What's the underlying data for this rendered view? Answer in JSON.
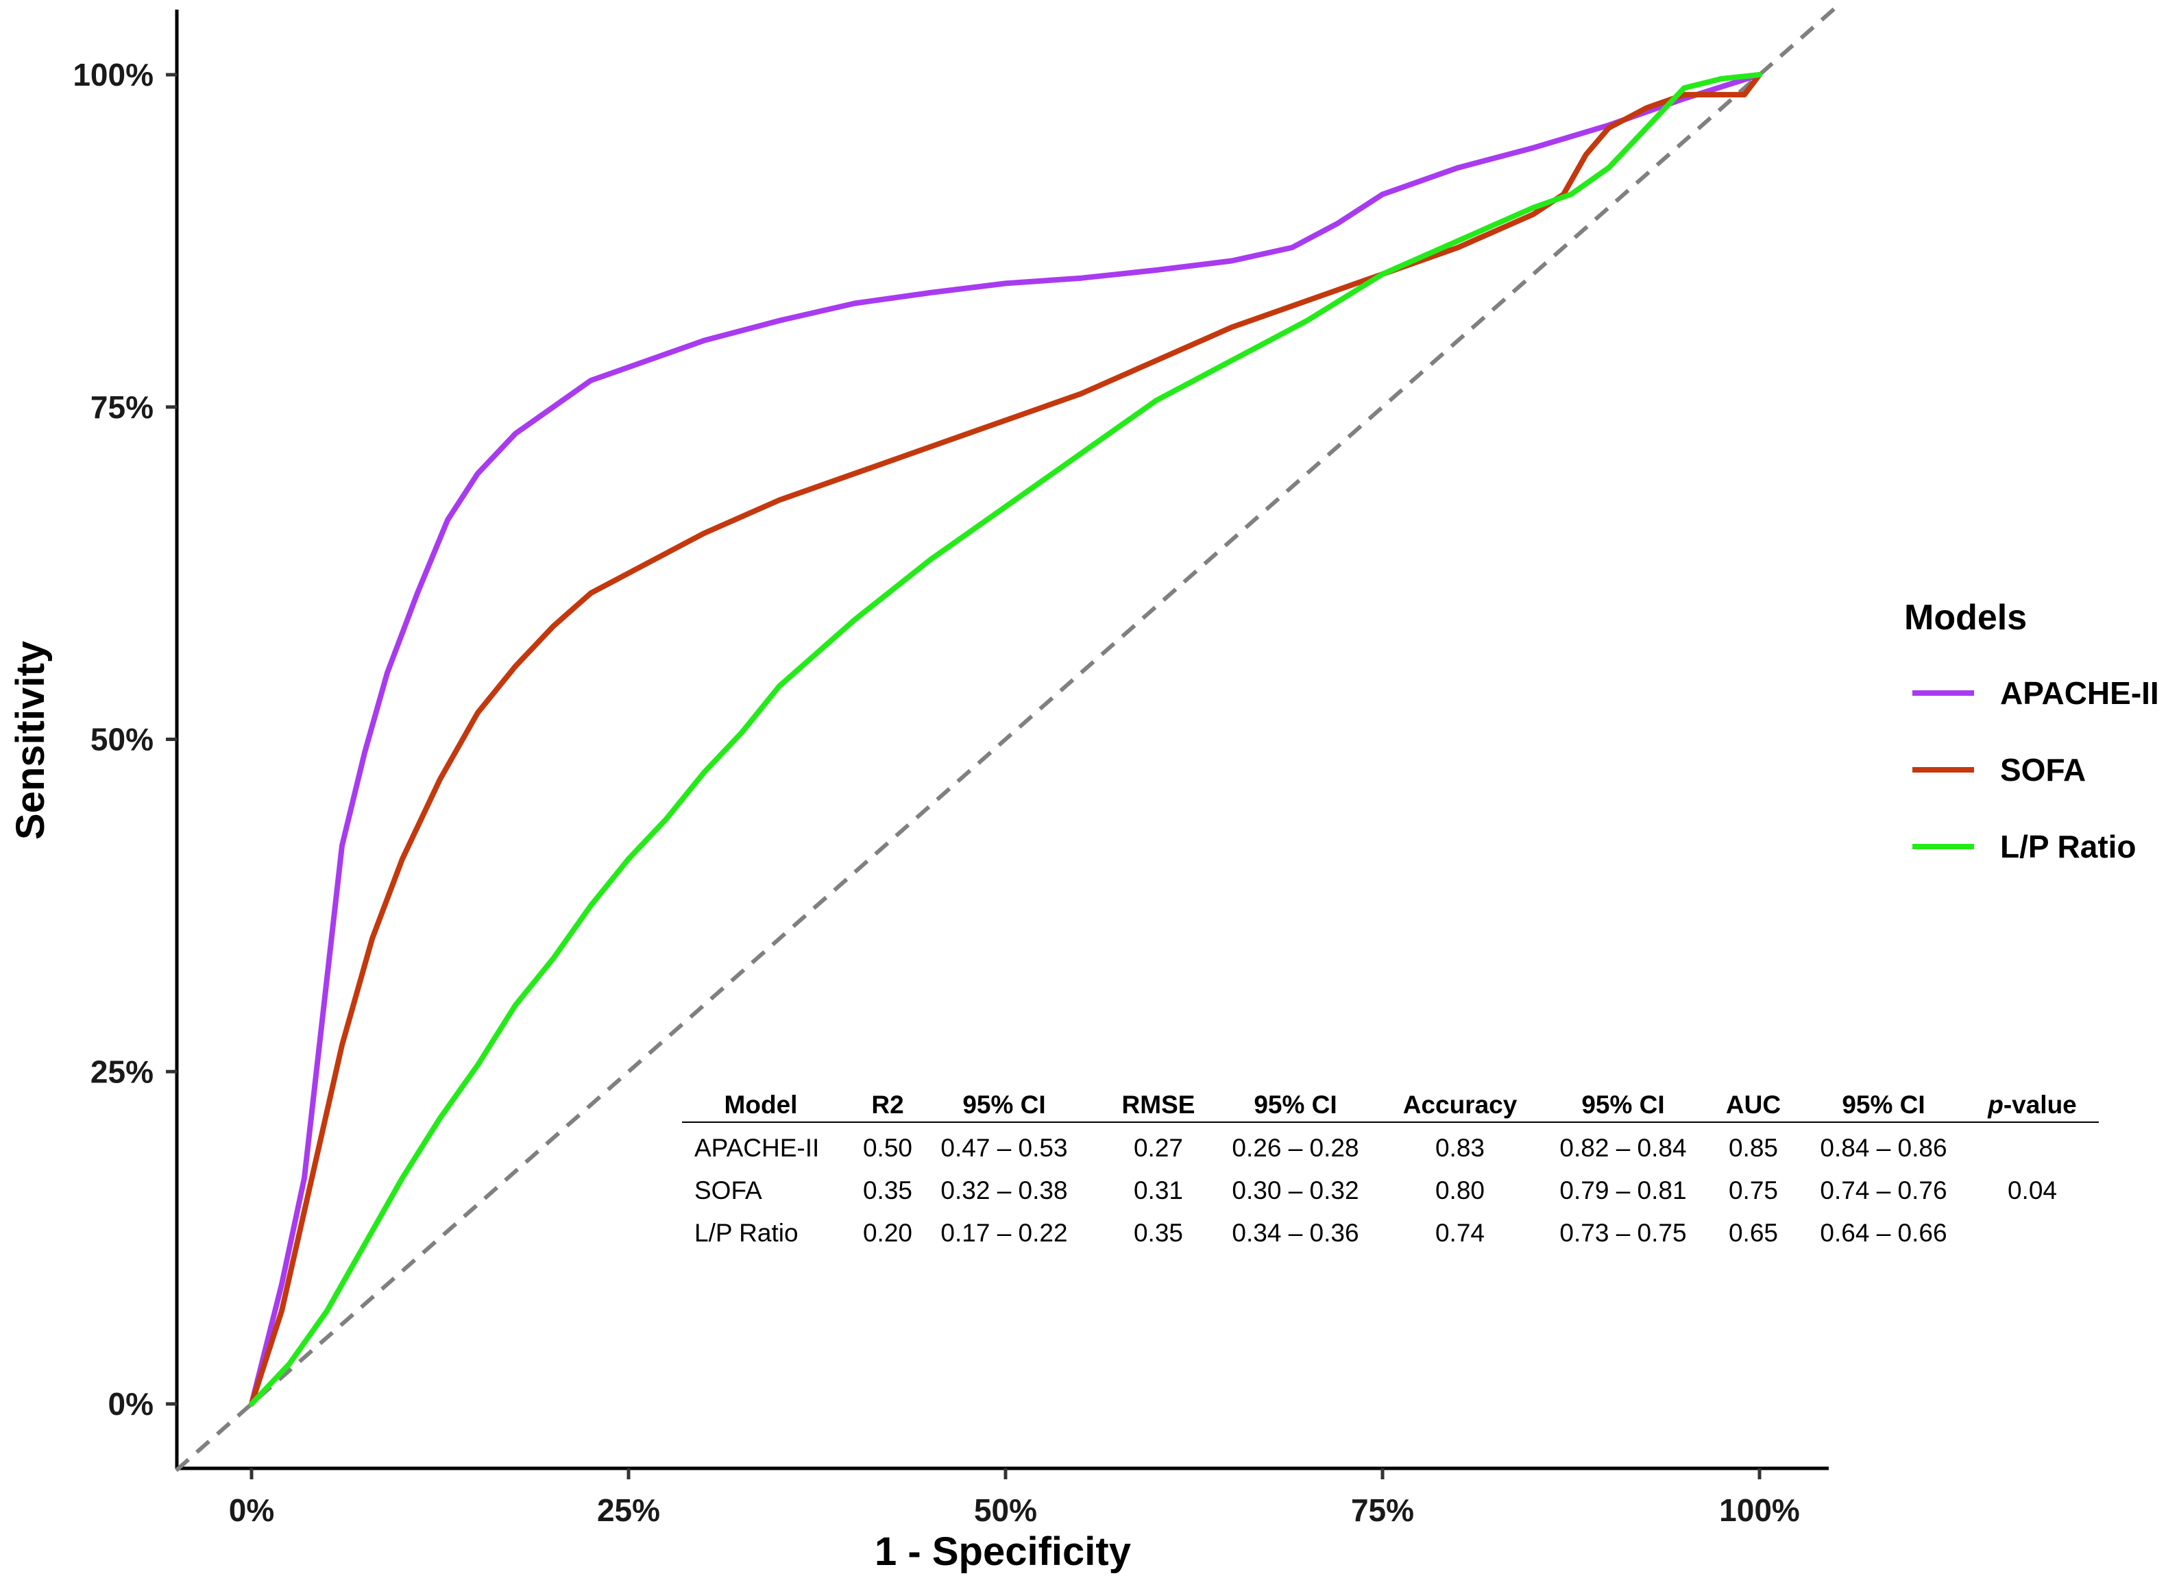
{
  "chart_data": {
    "type": "line",
    "xlabel": "1 - Specificity",
    "ylabel": "Sensitivity",
    "xlim": [
      0,
      1
    ],
    "ylim": [
      0,
      1
    ],
    "x_ticks": [
      {
        "value": 0,
        "label": "0%"
      },
      {
        "value": 0.25,
        "label": "25%"
      },
      {
        "value": 0.5,
        "label": "50%"
      },
      {
        "value": 0.75,
        "label": "75%"
      },
      {
        "value": 1,
        "label": "100%"
      }
    ],
    "y_ticks": [
      {
        "value": 0,
        "label": "0%"
      },
      {
        "value": 0.25,
        "label": "25%"
      },
      {
        "value": 0.5,
        "label": "50%"
      },
      {
        "value": 0.75,
        "label": "75%"
      },
      {
        "value": 1,
        "label": "100%"
      }
    ],
    "reference_line": {
      "style": "dashed",
      "color": "#808080",
      "from": [
        -0.05,
        -0.05
      ],
      "to": [
        1.05,
        1.05
      ]
    },
    "legend": {
      "title": "Models",
      "position": "right"
    },
    "series": [
      {
        "name": "APACHE-II",
        "color": "#A83BF0",
        "points": [
          [
            0,
            0
          ],
          [
            0.02,
            0.09
          ],
          [
            0.035,
            0.17
          ],
          [
            0.05,
            0.32
          ],
          [
            0.06,
            0.42
          ],
          [
            0.075,
            0.49
          ],
          [
            0.09,
            0.55
          ],
          [
            0.11,
            0.61
          ],
          [
            0.13,
            0.665
          ],
          [
            0.15,
            0.7
          ],
          [
            0.175,
            0.73
          ],
          [
            0.2,
            0.75
          ],
          [
            0.225,
            0.77
          ],
          [
            0.25,
            0.78
          ],
          [
            0.3,
            0.8
          ],
          [
            0.35,
            0.815
          ],
          [
            0.4,
            0.828
          ],
          [
            0.45,
            0.836
          ],
          [
            0.5,
            0.843
          ],
          [
            0.55,
            0.847
          ],
          [
            0.6,
            0.853
          ],
          [
            0.65,
            0.86
          ],
          [
            0.69,
            0.87
          ],
          [
            0.72,
            0.888
          ],
          [
            0.75,
            0.91
          ],
          [
            0.8,
            0.93
          ],
          [
            0.85,
            0.945
          ],
          [
            0.9,
            0.962
          ],
          [
            0.95,
            0.982
          ],
          [
            1.0,
            1.0
          ]
        ]
      },
      {
        "name": "SOFA",
        "color": "#C4380E",
        "points": [
          [
            0,
            0
          ],
          [
            0.02,
            0.07
          ],
          [
            0.04,
            0.17
          ],
          [
            0.06,
            0.27
          ],
          [
            0.08,
            0.35
          ],
          [
            0.1,
            0.41
          ],
          [
            0.125,
            0.47
          ],
          [
            0.15,
            0.52
          ],
          [
            0.175,
            0.555
          ],
          [
            0.2,
            0.585
          ],
          [
            0.225,
            0.61
          ],
          [
            0.25,
            0.625
          ],
          [
            0.3,
            0.655
          ],
          [
            0.35,
            0.68
          ],
          [
            0.4,
            0.7
          ],
          [
            0.45,
            0.72
          ],
          [
            0.5,
            0.74
          ],
          [
            0.55,
            0.76
          ],
          [
            0.6,
            0.785
          ],
          [
            0.65,
            0.81
          ],
          [
            0.7,
            0.83
          ],
          [
            0.75,
            0.85
          ],
          [
            0.8,
            0.87
          ],
          [
            0.85,
            0.895
          ],
          [
            0.87,
            0.91
          ],
          [
            0.885,
            0.94
          ],
          [
            0.9,
            0.96
          ],
          [
            0.925,
            0.975
          ],
          [
            0.95,
            0.985
          ],
          [
            0.99,
            0.985
          ],
          [
            1.0,
            1.0
          ]
        ]
      },
      {
        "name": "L/P Ratio",
        "color": "#25EA1A",
        "points": [
          [
            0,
            0
          ],
          [
            0.025,
            0.03
          ],
          [
            0.05,
            0.07
          ],
          [
            0.075,
            0.12
          ],
          [
            0.1,
            0.17
          ],
          [
            0.125,
            0.215
          ],
          [
            0.15,
            0.255
          ],
          [
            0.175,
            0.3
          ],
          [
            0.2,
            0.335
          ],
          [
            0.225,
            0.375
          ],
          [
            0.25,
            0.41
          ],
          [
            0.275,
            0.44
          ],
          [
            0.3,
            0.475
          ],
          [
            0.325,
            0.505
          ],
          [
            0.35,
            0.54
          ],
          [
            0.4,
            0.59
          ],
          [
            0.45,
            0.635
          ],
          [
            0.5,
            0.675
          ],
          [
            0.55,
            0.715
          ],
          [
            0.6,
            0.755
          ],
          [
            0.65,
            0.785
          ],
          [
            0.7,
            0.815
          ],
          [
            0.75,
            0.85
          ],
          [
            0.8,
            0.875
          ],
          [
            0.85,
            0.9
          ],
          [
            0.875,
            0.91
          ],
          [
            0.9,
            0.93
          ],
          [
            0.925,
            0.96
          ],
          [
            0.95,
            0.99
          ],
          [
            0.975,
            0.997
          ],
          [
            1.0,
            1.0
          ]
        ]
      }
    ],
    "table": {
      "headers": [
        "Model",
        "R2",
        "95% CI",
        "RMSE",
        "95% CI",
        "Accuracy",
        "95% CI",
        "AUC",
        "95% CI",
        "p-value"
      ],
      "rows": [
        [
          "APACHE-II",
          "0.50",
          "0.47 – 0.53",
          "0.27",
          "0.26 – 0.28",
          "0.83",
          "0.82 – 0.84",
          "0.85",
          "0.84 – 0.86"
        ],
        [
          "SOFA",
          "0.35",
          "0.32 – 0.38",
          "0.31",
          "0.30 – 0.32",
          "0.80",
          "0.79 – 0.81",
          "0.75",
          "0.74 – 0.76"
        ],
        [
          "L/P Ratio",
          "0.20",
          "0.17 – 0.22",
          "0.35",
          "0.34 – 0.36",
          "0.74",
          "0.73 – 0.75",
          "0.65",
          "0.64 – 0.66"
        ]
      ],
      "p_value": "0.04"
    }
  }
}
